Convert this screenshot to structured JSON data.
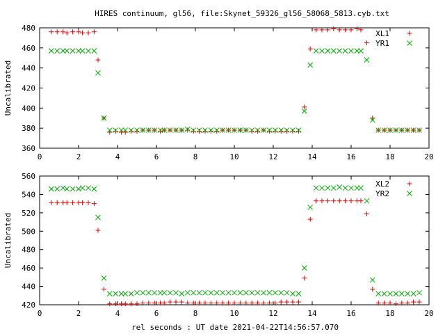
{
  "title": "HIRES continuum, gl56, file:Skynet_59326_gl56_58068_5813.cyb.txt",
  "colors": {
    "series1": "#dd0000",
    "series2": "#00aa00",
    "axes": "#000000",
    "background": "#ffffff"
  },
  "chart_data": [
    {
      "type": "scatter",
      "xlabel": "",
      "ylabel": "Uncalibrated",
      "xlim": [
        0,
        20
      ],
      "ylim": [
        360,
        480
      ],
      "xticks": [
        0,
        2,
        4,
        6,
        8,
        10,
        12,
        14,
        16,
        18,
        20
      ],
      "yticks": [
        360,
        380,
        400,
        420,
        440,
        460,
        480
      ],
      "grid": false,
      "legend_position": "top-right",
      "x": [
        0.6,
        0.9,
        1.2,
        1.4,
        1.7,
        2.0,
        2.2,
        2.5,
        2.8,
        3.0,
        3.3,
        3.6,
        3.9,
        4.2,
        4.4,
        4.7,
        5.0,
        5.3,
        5.6,
        5.9,
        6.2,
        6.4,
        6.7,
        7.0,
        7.3,
        7.6,
        7.9,
        8.2,
        8.5,
        8.8,
        9.1,
        9.4,
        9.7,
        10.0,
        10.3,
        10.6,
        10.9,
        11.2,
        11.5,
        11.8,
        12.1,
        12.4,
        12.7,
        13.0,
        13.3,
        13.6,
        13.9,
        14.2,
        14.5,
        14.8,
        15.1,
        15.4,
        15.7,
        16.0,
        16.3,
        16.5,
        16.8,
        17.1,
        17.4,
        17.7,
        18.0,
        18.3,
        18.6,
        18.9,
        19.2,
        19.5
      ],
      "series": [
        {
          "name": "XL1",
          "marker": "plus",
          "values": [
            476,
            476,
            476,
            475,
            476,
            476,
            475,
            475,
            476,
            448,
            390,
            376,
            377,
            376,
            376,
            377,
            377,
            378,
            378,
            378,
            377,
            378,
            378,
            378,
            378,
            378,
            377,
            377,
            377,
            377,
            377,
            378,
            378,
            378,
            378,
            378,
            377,
            377,
            378,
            377,
            377,
            377,
            377,
            377,
            377,
            401,
            459,
            478,
            478,
            478,
            479,
            478,
            478,
            478,
            479,
            478,
            465,
            390,
            378,
            378,
            378,
            378,
            378,
            378,
            378,
            378
          ]
        },
        {
          "name": "YR1",
          "marker": "cross",
          "values": [
            457,
            457,
            457,
            457,
            457,
            457,
            457,
            457,
            457,
            435,
            390,
            378,
            378,
            378,
            378,
            378,
            378,
            378,
            378,
            378,
            378,
            378,
            378,
            378,
            378,
            379,
            378,
            378,
            378,
            378,
            378,
            378,
            378,
            378,
            378,
            378,
            378,
            378,
            378,
            378,
            378,
            378,
            378,
            378,
            378,
            397,
            443,
            457,
            457,
            457,
            457,
            457,
            457,
            457,
            457,
            457,
            448,
            388,
            378,
            378,
            378,
            378,
            378,
            378,
            378,
            378
          ]
        }
      ]
    },
    {
      "type": "scatter",
      "xlabel": "rel seconds : UT date 2021-04-22T14:56:57.070",
      "ylabel": "Uncalibrated",
      "xlim": [
        0,
        20
      ],
      "ylim": [
        420,
        560
      ],
      "xticks": [
        0,
        2,
        4,
        6,
        8,
        10,
        12,
        14,
        16,
        18,
        20
      ],
      "yticks": [
        420,
        440,
        460,
        480,
        500,
        520,
        540,
        560
      ],
      "grid": false,
      "legend_position": "top-right",
      "x": [
        0.6,
        0.9,
        1.2,
        1.4,
        1.7,
        2.0,
        2.2,
        2.5,
        2.8,
        3.0,
        3.3,
        3.6,
        3.9,
        4.2,
        4.4,
        4.7,
        5.0,
        5.3,
        5.6,
        5.9,
        6.2,
        6.4,
        6.7,
        7.0,
        7.3,
        7.6,
        7.9,
        8.2,
        8.5,
        8.8,
        9.1,
        9.4,
        9.7,
        10.0,
        10.3,
        10.6,
        10.9,
        11.2,
        11.5,
        11.8,
        12.1,
        12.4,
        12.7,
        13.0,
        13.3,
        13.6,
        13.9,
        14.2,
        14.5,
        14.8,
        15.1,
        15.4,
        15.7,
        16.0,
        16.3,
        16.5,
        16.8,
        17.1,
        17.4,
        17.7,
        18.0,
        18.3,
        18.6,
        18.9,
        19.2,
        19.5
      ],
      "series": [
        {
          "name": "XL2",
          "marker": "plus",
          "values": [
            531,
            531,
            531,
            531,
            531,
            531,
            531,
            531,
            530,
            501,
            437,
            421,
            421,
            421,
            421,
            421,
            421,
            422,
            422,
            422,
            422,
            422,
            423,
            423,
            423,
            422,
            422,
            422,
            422,
            422,
            422,
            422,
            422,
            422,
            422,
            422,
            422,
            422,
            422,
            422,
            422,
            423,
            423,
            423,
            423,
            449,
            513,
            533,
            533,
            533,
            533,
            533,
            533,
            533,
            533,
            533,
            519,
            437,
            422,
            422,
            422,
            421,
            422,
            422,
            423,
            423
          ]
        },
        {
          "name": "YR2",
          "marker": "cross",
          "values": [
            546,
            546,
            547,
            546,
            546,
            546,
            547,
            547,
            546,
            515,
            449,
            432,
            432,
            432,
            432,
            432,
            433,
            433,
            433,
            433,
            433,
            433,
            433,
            433,
            432,
            433,
            433,
            433,
            433,
            433,
            433,
            433,
            433,
            433,
            433,
            433,
            433,
            433,
            433,
            433,
            433,
            433,
            433,
            432,
            432,
            460,
            526,
            547,
            547,
            547,
            547,
            548,
            547,
            547,
            547,
            547,
            533,
            447,
            432,
            432,
            432,
            432,
            432,
            432,
            432,
            433
          ]
        }
      ]
    }
  ]
}
